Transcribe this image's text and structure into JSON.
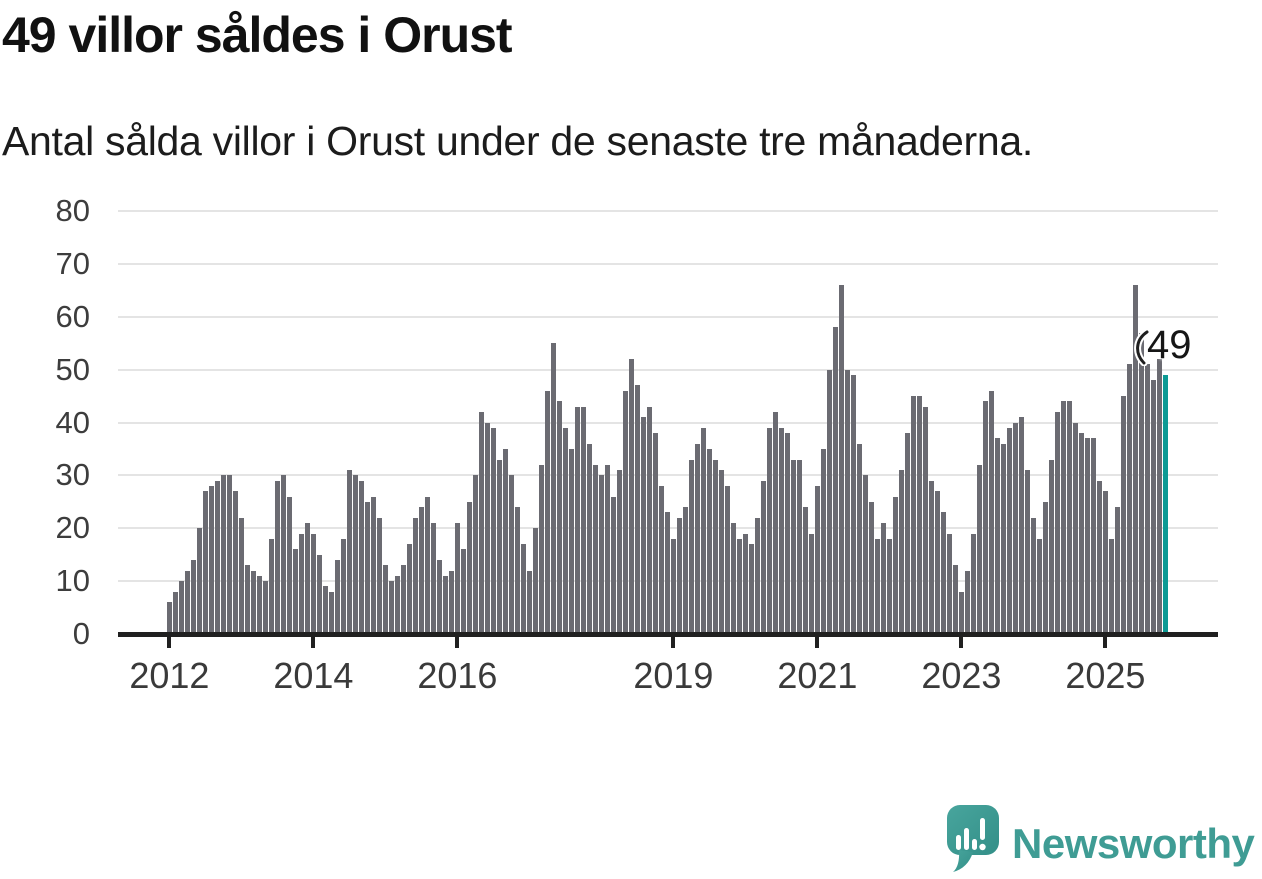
{
  "header": {
    "title": "49 villor såldes i Orust",
    "subtitle": "Antal sålda villor i Orust under de senaste tre månaderna."
  },
  "chart_data": {
    "type": "bar",
    "title": "49 villor såldes i Orust",
    "subtitle": "Antal sålda villor i Orust under de senaste tre månaderna.",
    "xlabel": "",
    "ylabel": "",
    "ylim": [
      0,
      80
    ],
    "y_ticks": [
      0,
      10,
      20,
      30,
      40,
      50,
      60,
      70,
      80
    ],
    "grid": true,
    "legend": "none",
    "x_unit": "month",
    "x_start_year": 2012,
    "x_ticks": [
      {
        "label": "2012",
        "index": 0
      },
      {
        "label": "2014",
        "index": 24
      },
      {
        "label": "2016",
        "index": 48
      },
      {
        "label": "2019",
        "index": 84
      },
      {
        "label": "2021",
        "index": 108
      },
      {
        "label": "2023",
        "index": 132
      },
      {
        "label": "2025",
        "index": 156
      }
    ],
    "values": [
      6,
      8,
      10,
      12,
      14,
      20,
      27,
      28,
      29,
      30,
      30,
      27,
      22,
      13,
      12,
      11,
      10,
      18,
      29,
      30,
      26,
      16,
      19,
      21,
      19,
      15,
      9,
      8,
      14,
      18,
      31,
      30,
      29,
      25,
      26,
      22,
      13,
      10,
      11,
      13,
      17,
      22,
      24,
      26,
      21,
      14,
      11,
      12,
      21,
      16,
      25,
      30,
      42,
      40,
      39,
      33,
      35,
      30,
      24,
      17,
      12,
      20,
      32,
      46,
      55,
      44,
      39,
      35,
      43,
      43,
      36,
      32,
      30,
      32,
      26,
      31,
      46,
      52,
      47,
      41,
      43,
      38,
      28,
      23,
      18,
      22,
      24,
      33,
      36,
      39,
      35,
      33,
      31,
      28,
      21,
      18,
      19,
      17,
      22,
      29,
      39,
      42,
      39,
      38,
      33,
      33,
      24,
      19,
      28,
      35,
      50,
      58,
      66,
      50,
      49,
      36,
      30,
      25,
      18,
      21,
      18,
      26,
      31,
      38,
      45,
      45,
      43,
      29,
      27,
      23,
      19,
      13,
      8,
      12,
      19,
      32,
      44,
      46,
      37,
      36,
      39,
      40,
      41,
      31,
      22,
      18,
      25,
      33,
      42,
      44,
      44,
      40,
      38,
      37,
      37,
      29,
      27,
      18,
      24,
      45,
      51,
      66,
      57,
      51,
      48,
      52,
      49
    ],
    "highlight_index": 166,
    "bar_color": "#6b6b72",
    "highlight_color": "#0d9a94",
    "grid_color": "#e4e4e4",
    "axis_color": "#202020",
    "annotation": {
      "text": "49",
      "index": 166
    }
  },
  "footer": {
    "brand": "Newsworthy",
    "brand_color": "#3f9c94"
  }
}
